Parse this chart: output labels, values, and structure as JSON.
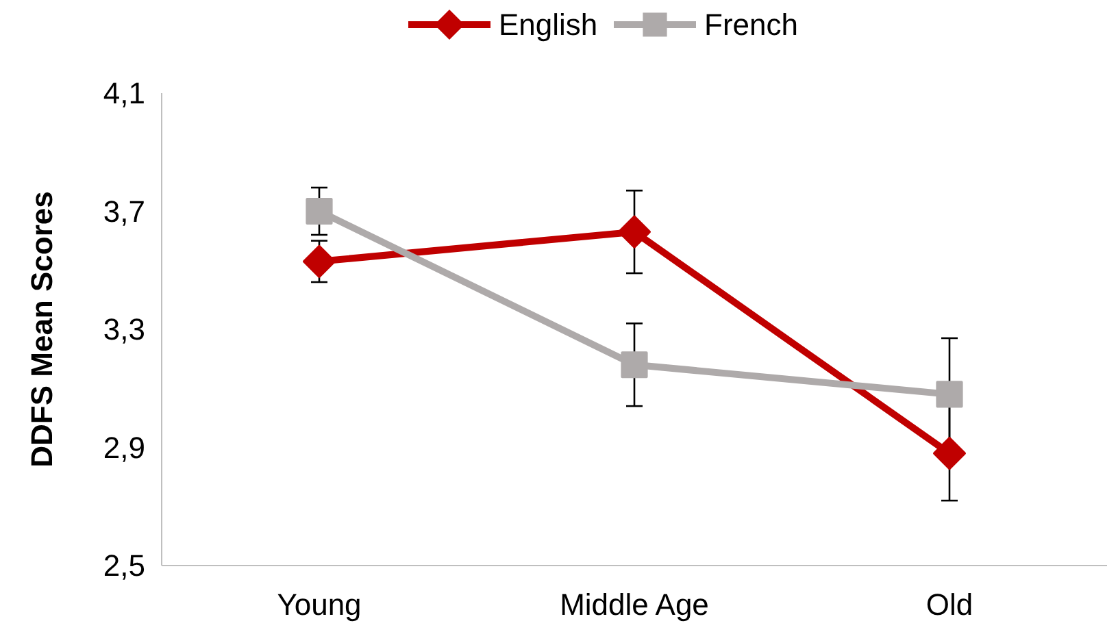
{
  "chart_data": {
    "type": "line",
    "ylabel": "DDFS Mean Scores",
    "categories": [
      "Young",
      "Middle Age",
      "Old"
    ],
    "series": [
      {
        "name": "English",
        "color": "#c00000",
        "marker": "diamond",
        "values": [
          3.53,
          3.63,
          2.88
        ],
        "errors": [
          0.07,
          0.14,
          0.16
        ]
      },
      {
        "name": "French",
        "color": "#aeaaaa",
        "marker": "square",
        "values": [
          3.7,
          3.18,
          3.08
        ],
        "errors": [
          0.08,
          0.14,
          0.19
        ]
      }
    ],
    "ylim": [
      2.5,
      4.1
    ],
    "yticks": [
      {
        "value": 2.5,
        "label": "2,5"
      },
      {
        "value": 2.9,
        "label": "2,9"
      },
      {
        "value": 3.3,
        "label": "3,3"
      },
      {
        "value": 3.7,
        "label": "3,7"
      },
      {
        "value": 4.1,
        "label": "4,1"
      }
    ],
    "grid": false,
    "legend": "top",
    "line_style": "solid"
  }
}
